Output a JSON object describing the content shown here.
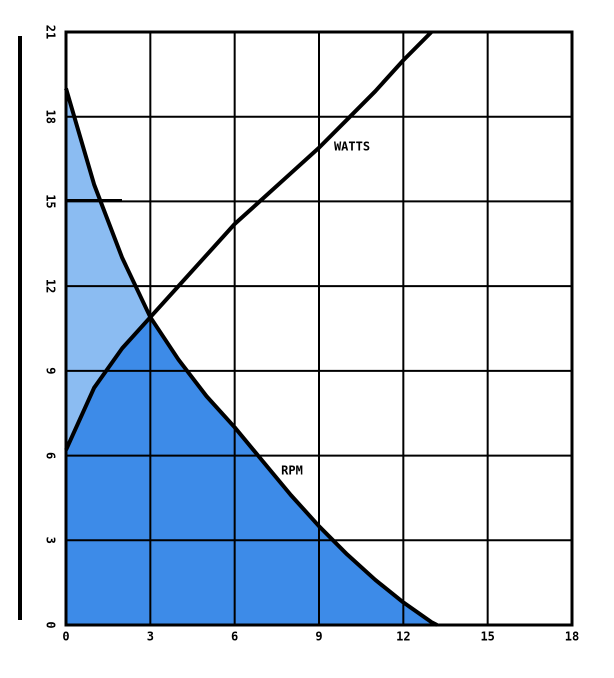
{
  "chart_data": {
    "type": "line",
    "x": [
      0,
      1,
      2,
      3,
      4,
      5,
      6,
      7,
      8,
      9,
      10,
      11,
      12,
      13,
      13.2
    ],
    "series": [
      {
        "name": "WATTS",
        "color": "#000000",
        "values": [
          6.2,
          8.4,
          9.8,
          10.9,
          12.0,
          13.1,
          14.2,
          15.1,
          16.0,
          16.9,
          17.9,
          18.9,
          20.0,
          21.0,
          null
        ]
      },
      {
        "name": "RPM",
        "color": "#000000",
        "values": [
          19.0,
          15.6,
          13.0,
          10.9,
          9.4,
          8.1,
          7.0,
          5.8,
          4.6,
          3.5,
          2.5,
          1.6,
          0.8,
          0.1,
          0
        ]
      }
    ],
    "fill_color": "#3d8be8",
    "overlap_fill_color": "#8bbcf2",
    "xlim": [
      0,
      18
    ],
    "xticks": [
      0,
      3,
      6,
      9,
      12,
      15,
      18
    ],
    "ylim": [
      0,
      21
    ],
    "yticks": [
      0,
      3,
      6,
      9,
      12,
      15,
      18,
      21
    ],
    "grid": true
  }
}
